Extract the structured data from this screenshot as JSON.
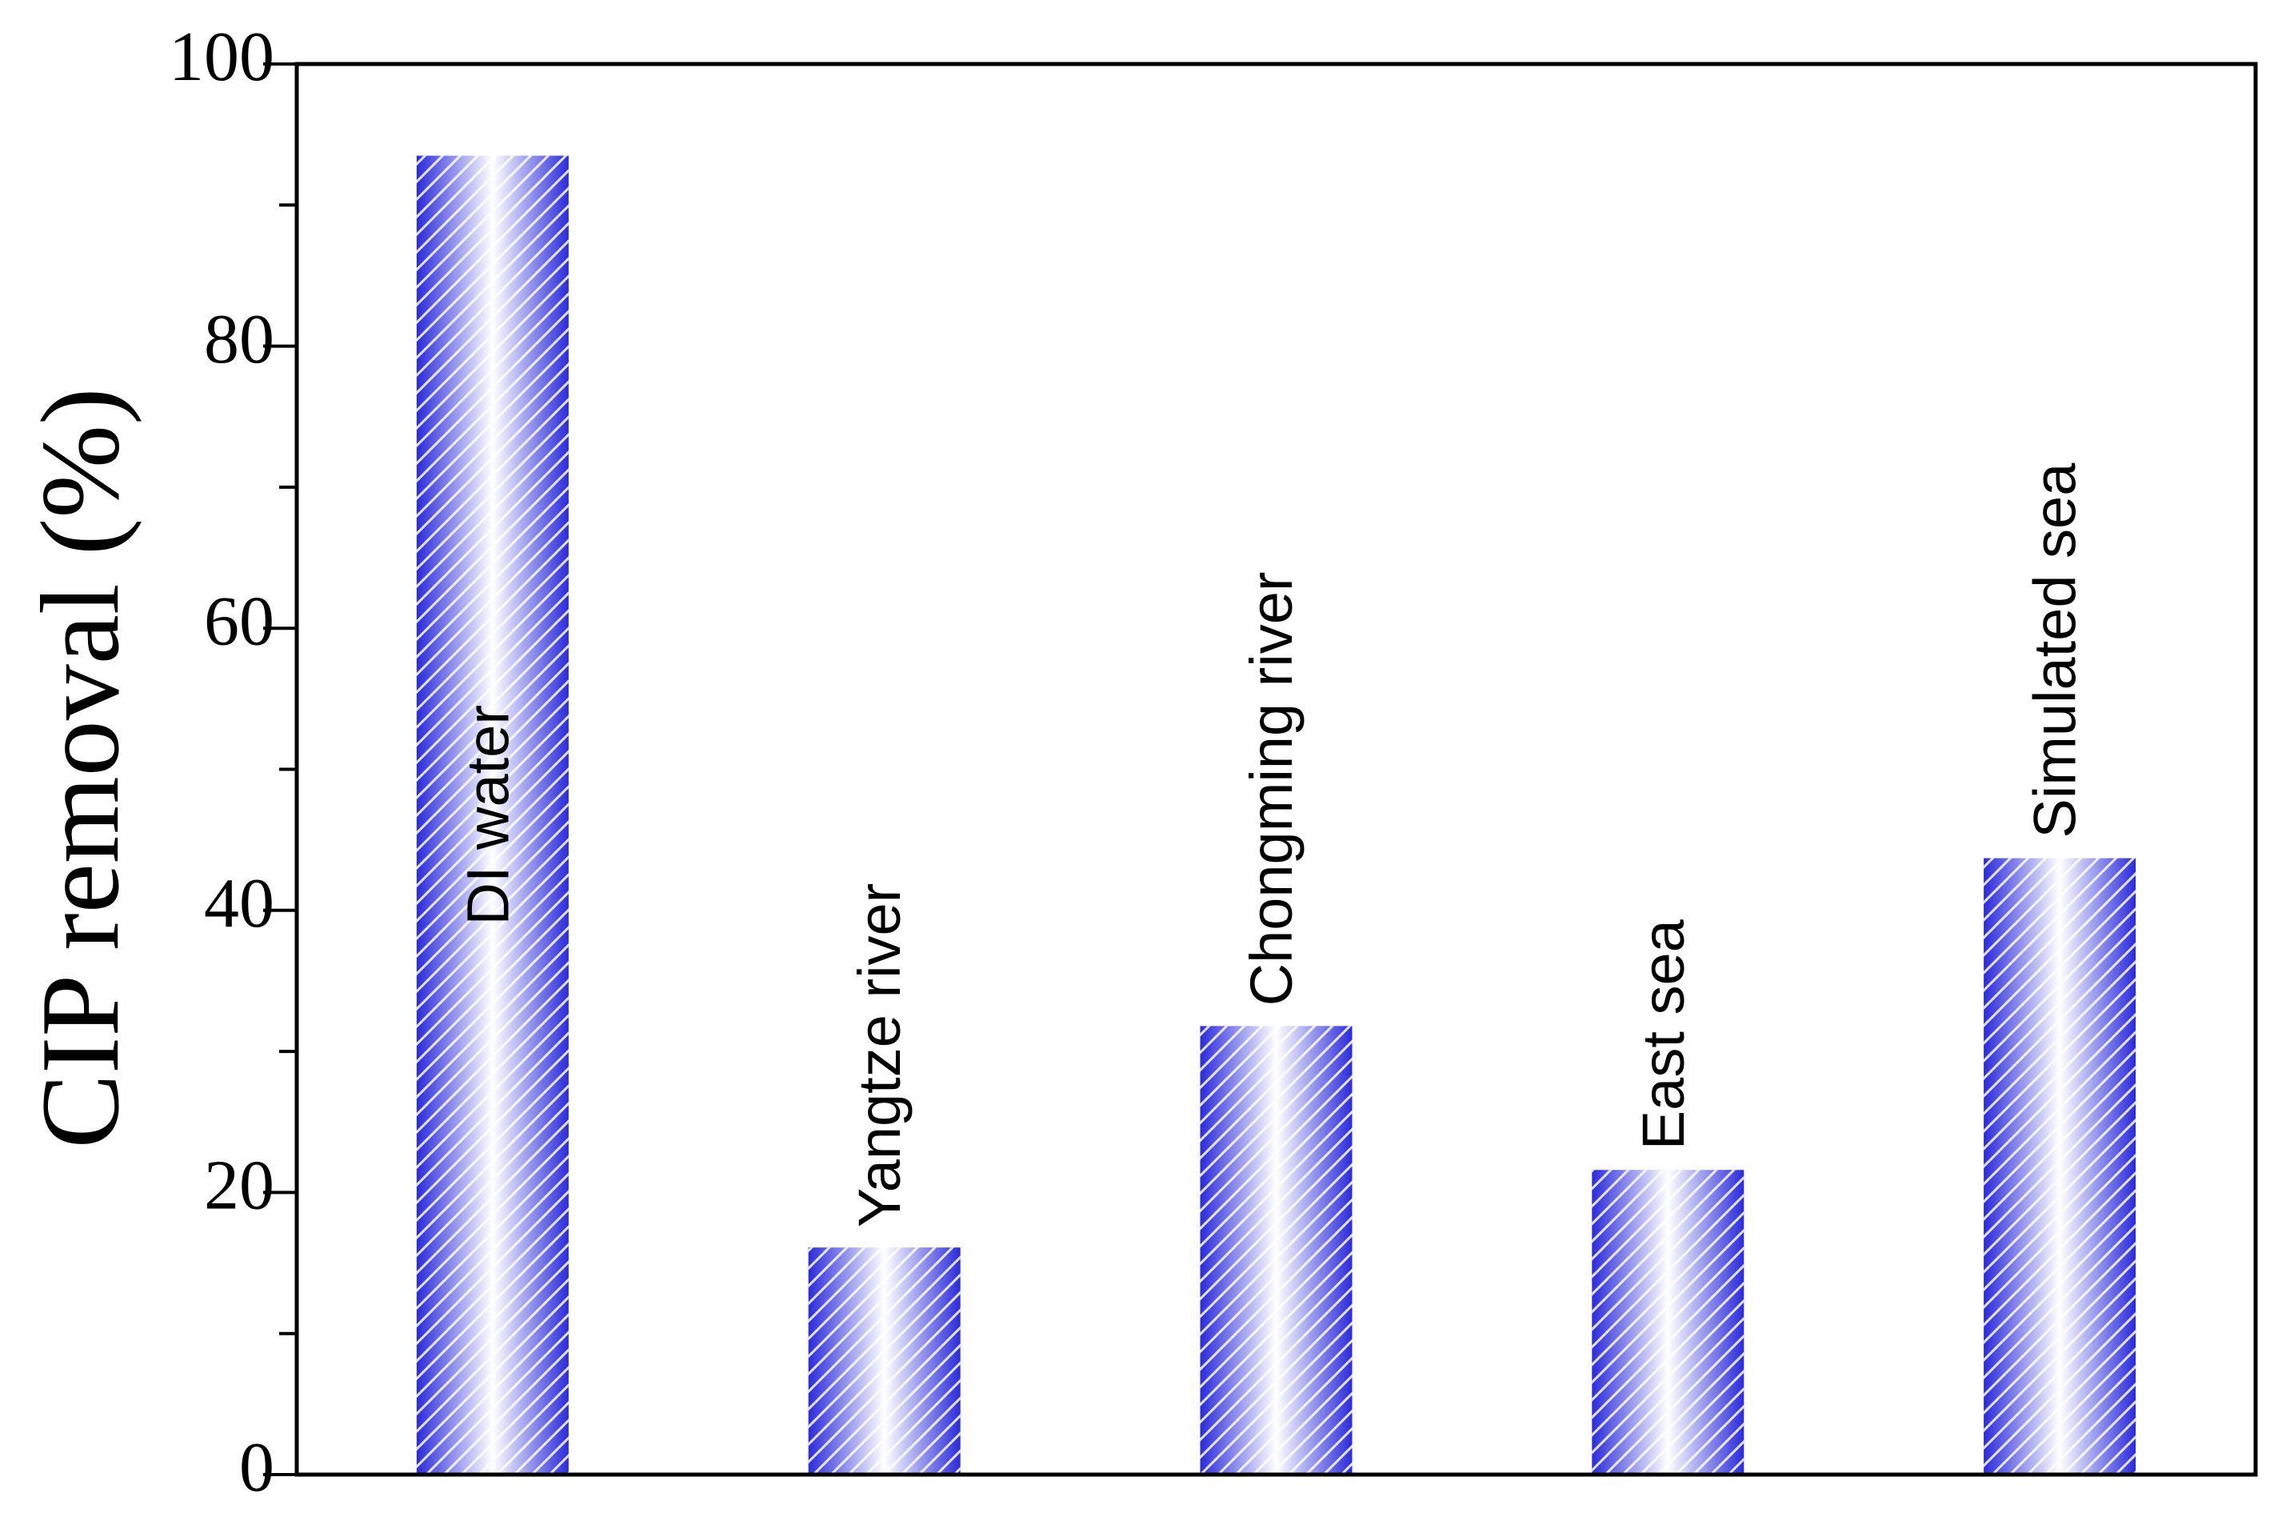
{
  "chart_data": {
    "type": "bar",
    "y_label": "CIP removal (%)",
    "categories": [
      "DI water",
      "Yangtze river",
      "Chongming river",
      "East sea",
      "Simulated sea"
    ],
    "values": [
      93.5,
      16.1,
      31.8,
      21.6,
      43.7
    ],
    "color": "#2b2bdc",
    "ylim": [
      0,
      100
    ],
    "yticks": [
      0,
      20,
      40,
      60,
      80,
      100
    ],
    "yminorticks": [
      10,
      30,
      50,
      70,
      90
    ]
  }
}
